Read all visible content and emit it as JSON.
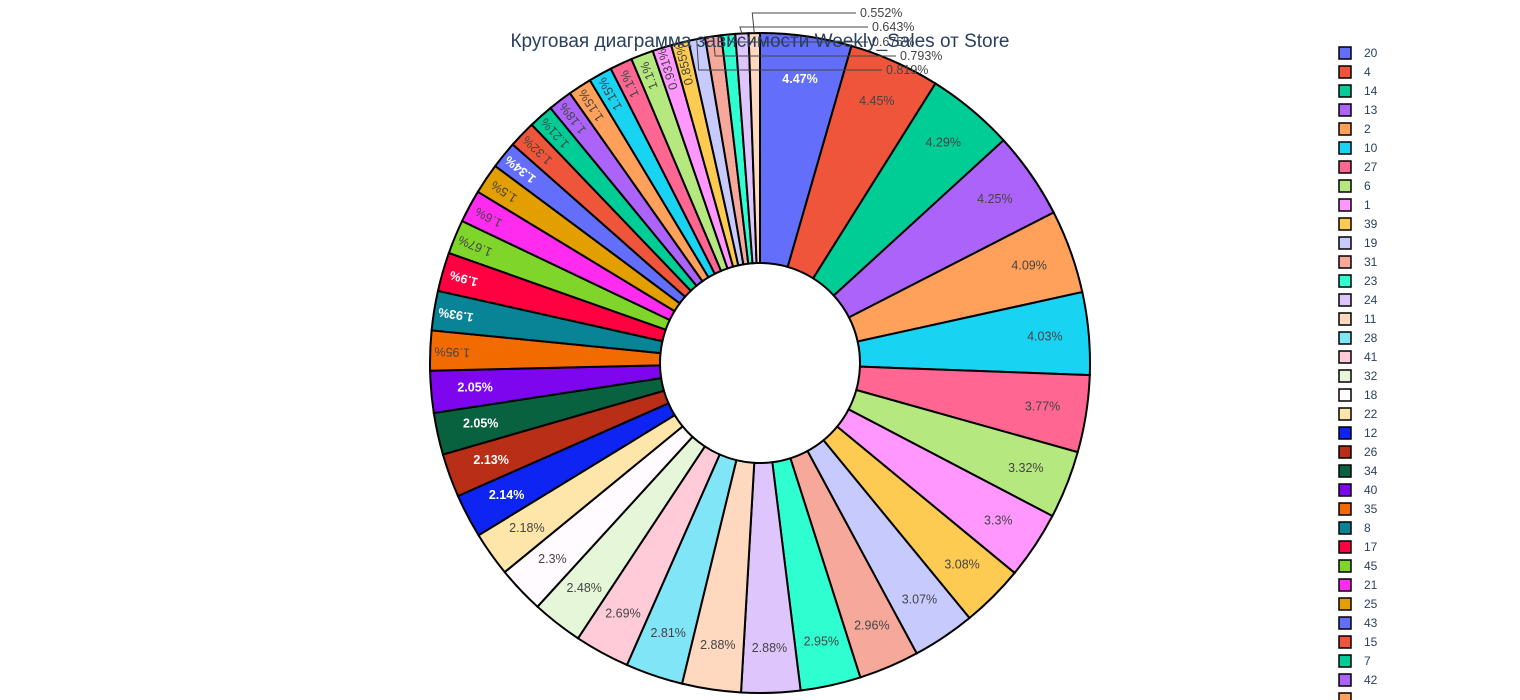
{
  "chart_data": {
    "type": "pie",
    "hole": true,
    "title": "Круговая диаграмма зависимости Weekly_Sales от Store",
    "legend_position": "right",
    "slices": [
      {
        "label": "20",
        "value": 4.47,
        "text": "4.47%",
        "color": "#636efa"
      },
      {
        "label": "4",
        "value": 4.45,
        "text": "4.45%",
        "color": "#EF553B"
      },
      {
        "label": "14",
        "value": 4.29,
        "text": "4.29%",
        "color": "#00cc96"
      },
      {
        "label": "13",
        "value": 4.25,
        "text": "4.25%",
        "color": "#ab63fa"
      },
      {
        "label": "2",
        "value": 4.09,
        "text": "4.09%",
        "color": "#FFA15A"
      },
      {
        "label": "10",
        "value": 4.03,
        "text": "4.03%",
        "color": "#19d3f3"
      },
      {
        "label": "27",
        "value": 3.77,
        "text": "3.77%",
        "color": "#FF6692"
      },
      {
        "label": "6",
        "value": 3.32,
        "text": "3.32%",
        "color": "#B6E880"
      },
      {
        "label": "1",
        "value": 3.3,
        "text": "3.3%",
        "color": "#FF97FF"
      },
      {
        "label": "39",
        "value": 3.08,
        "text": "3.08%",
        "color": "#FECB52"
      },
      {
        "label": "19",
        "value": 3.07,
        "text": "3.07%",
        "color": "#C6CAFD"
      },
      {
        "label": "31",
        "value": 2.96,
        "text": "2.96%",
        "color": "#F6A99A"
      },
      {
        "label": "23",
        "value": 2.95,
        "text": "2.95%",
        "color": "#2FFFD0"
      },
      {
        "label": "24",
        "value": 2.88,
        "text": "2.88%",
        "color": "#DEC6FC"
      },
      {
        "label": "11",
        "value": 2.88,
        "text": "2.88%",
        "color": "#FED9C0"
      },
      {
        "label": "28",
        "value": 2.81,
        "text": "2.81%",
        "color": "#7FE5F7"
      },
      {
        "label": "41",
        "value": 2.69,
        "text": "2.69%",
        "color": "#FFCBD9"
      },
      {
        "label": "32",
        "value": 2.48,
        "text": "2.48%",
        "color": "#E6F6D8"
      },
      {
        "label": "18",
        "value": 2.3,
        "text": "2.3%",
        "color": "#FFFBFF"
      },
      {
        "label": "22",
        "value": 2.18,
        "text": "2.18%",
        "color": "#FEE5A9"
      },
      {
        "label": "12",
        "value": 2.14,
        "text": "2.14%",
        "color": "#0D24F2"
      },
      {
        "label": "26",
        "value": 2.13,
        "text": "2.13%",
        "color": "#B82E16"
      },
      {
        "label": "34",
        "value": 2.05,
        "text": "2.05%",
        "color": "#08623F"
      },
      {
        "label": "40",
        "value": 2.05,
        "text": "2.05%",
        "color": "#7D06EE"
      },
      {
        "label": "35",
        "value": 1.95,
        "text": "1.95%",
        "color": "#F26B00"
      },
      {
        "label": "8",
        "value": 1.93,
        "text": "1.93%",
        "color": "#088496"
      },
      {
        "label": "17",
        "value": 1.9,
        "text": "1.9%",
        "color": "#FF0041"
      },
      {
        "label": "45",
        "value": 1.67,
        "text": "1.67%",
        "color": "#7FD52A"
      },
      {
        "label": "21",
        "value": 1.6,
        "text": "1.6%",
        "color": "#FF2CF0"
      },
      {
        "label": "25",
        "value": 1.5,
        "text": "1.5%",
        "color": "#E39E00"
      },
      {
        "label": "43",
        "value": 1.34,
        "text": "1.34%",
        "color": "#636efa"
      },
      {
        "label": "15",
        "value": 1.32,
        "text": "1.32%",
        "color": "#EF553B"
      },
      {
        "label": "7",
        "value": 1.21,
        "text": "1.21%",
        "color": "#00cc96"
      },
      {
        "label": "42",
        "value": 1.18,
        "text": "1.18%",
        "color": "#ab63fa"
      },
      {
        "label": "",
        "value": 1.15,
        "text": "1.15%",
        "color": "#FFA15A"
      },
      {
        "label": "",
        "value": 1.15,
        "text": "1.15%",
        "color": "#19d3f3"
      },
      {
        "label": "",
        "value": 1.1,
        "text": "1.1%",
        "color": "#FF6692"
      },
      {
        "label": "",
        "value": 1.1,
        "text": "1.1%",
        "color": "#B6E880"
      },
      {
        "label": "",
        "value": 0.931,
        "text": "0.931%",
        "color": "#FF97FF"
      },
      {
        "label": "",
        "value": 0.855,
        "text": "0.855%",
        "color": "#FECB52"
      },
      {
        "label": "",
        "value": 0.819,
        "text": "0.819%",
        "color": "#C6CAFD"
      },
      {
        "label": "",
        "value": 0.793,
        "text": "0.793%",
        "color": "#F6A99A"
      },
      {
        "label": "",
        "value": 0.675,
        "text": "0.675%",
        "color": "#2FFFD0"
      },
      {
        "label": "",
        "value": 0.643,
        "text": "0.643%",
        "color": "#DEC6FC"
      },
      {
        "label": "",
        "value": 0.552,
        "text": "0.552%",
        "color": "#FED9C0"
      }
    ]
  }
}
